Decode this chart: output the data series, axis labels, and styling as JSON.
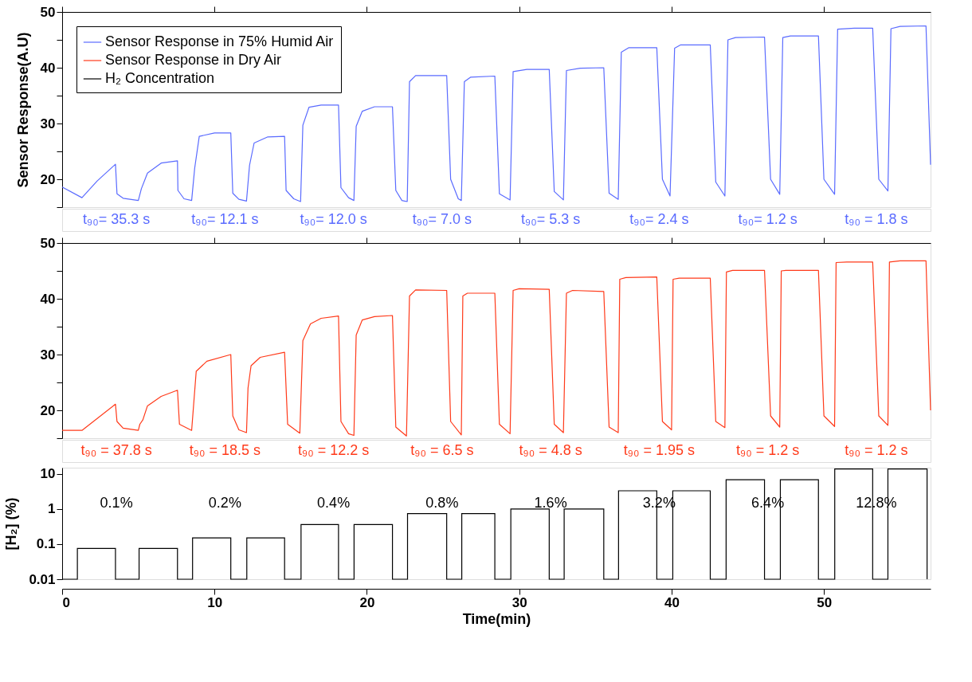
{
  "chart_data": [
    {
      "type": "line",
      "ylabel": "Sensor Response(A.U)",
      "xlim": [
        0,
        57
      ],
      "xticks": [
        0,
        10,
        20,
        30,
        40,
        50
      ],
      "ylim": [
        15,
        50
      ],
      "yticks": [
        {
          "value": 15,
          "label": null
        },
        20,
        {
          "value": 25,
          "label": null
        },
        30,
        {
          "value": 35,
          "label": null
        },
        40,
        {
          "value": 45,
          "label": null
        },
        50
      ],
      "tick_labels": "y",
      "grid": false,
      "legend": "top left",
      "series": [
        {
          "name": "Sensor Response in 75% Humid Air",
          "color": "#5a6bff",
          "x": [
            0,
            1.3,
            2.3,
            3.5,
            3.6,
            4.0,
            5.0,
            5.2,
            5.6,
            6.5,
            7.57,
            7.6,
            8.0,
            8.5,
            8.7,
            9.0,
            10.0,
            11.07,
            11.2,
            11.6,
            12.1,
            12.3,
            12.6,
            13.5,
            14.6,
            14.7,
            15.2,
            15.65,
            15.8,
            16.2,
            17.0,
            18.14,
            18.3,
            18.8,
            19.15,
            19.3,
            19.7,
            20.5,
            21.68,
            21.9,
            22.3,
            22.65,
            22.8,
            23.2,
            25.24,
            25.5,
            26.0,
            26.2,
            26.4,
            26.8,
            28.4,
            28.7,
            29.4,
            29.6,
            30.5,
            31.97,
            32.3,
            32.9,
            33.1,
            34.0,
            35.55,
            35.9,
            36.5,
            36.7,
            37.2,
            39.03,
            39.4,
            39.9,
            40.2,
            40.6,
            42.54,
            42.9,
            43.5,
            43.7,
            44.2,
            46.1,
            46.5,
            47.1,
            47.3,
            47.8,
            49.64,
            50.0,
            50.7,
            50.9,
            52.0,
            53.2,
            53.6,
            54.2,
            54.4,
            55.0,
            56.7,
            57.0
          ],
          "values": [
            18.6,
            16.7,
            19.7,
            22.7,
            17.4,
            16.6,
            16.2,
            18.3,
            21.1,
            22.9,
            23.3,
            18.0,
            16.5,
            16.2,
            22.0,
            27.7,
            28.3,
            28.3,
            17.5,
            16.4,
            16.1,
            22.5,
            26.5,
            27.6,
            27.7,
            18.0,
            16.5,
            16.0,
            29.7,
            32.9,
            33.3,
            33.3,
            18.5,
            16.7,
            16.2,
            29.5,
            32.2,
            33.0,
            33.0,
            18.0,
            16.2,
            16.0,
            37.5,
            38.6,
            38.6,
            20.0,
            16.5,
            16.2,
            37.5,
            38.3,
            38.5,
            17.4,
            16.3,
            39.3,
            39.7,
            39.7,
            17.8,
            16.3,
            39.5,
            39.9,
            40.0,
            17.5,
            16.4,
            42.8,
            43.6,
            43.6,
            20.0,
            17.0,
            43.5,
            44.1,
            44.1,
            19.5,
            17.0,
            45.0,
            45.4,
            45.5,
            20.0,
            17.3,
            45.4,
            45.7,
            45.7,
            20.0,
            17.3,
            46.9,
            47.1,
            47.1,
            20.0,
            17.9,
            47.0,
            47.4,
            47.5,
            22.6
          ]
        }
      ],
      "annotations": [
        "t₉₀= 35.3 s",
        "t₉₀= 12.1 s",
        "t₉₀= 12.0 s",
        "t₉₀= 7.0 s",
        "t₉₀= 5.3 s",
        "t₉₀= 2.4 s",
        "t₉₀= 1.2 s",
        "t₉₀ = 1.8 s"
      ]
    },
    {
      "type": "line",
      "xlim": [
        0,
        57
      ],
      "xticks": [
        0,
        10,
        20,
        30,
        40,
        50
      ],
      "ylim": [
        15,
        50
      ],
      "yticks": [
        {
          "value": 15,
          "label": null
        },
        20,
        {
          "value": 25,
          "label": null
        },
        30,
        {
          "value": 35,
          "label": null
        },
        40,
        {
          "value": 45,
          "label": null
        },
        50
      ],
      "tick_labels": "y",
      "grid": false,
      "series": [
        {
          "name": "Sensor Response in Dry Air",
          "color": "#ff3a1a",
          "x": [
            0,
            1.3,
            3.5,
            3.6,
            4.0,
            5.0,
            5.1,
            5.3,
            5.6,
            6.5,
            7.57,
            7.7,
            8.5,
            8.8,
            9.5,
            11.07,
            11.2,
            11.6,
            12.1,
            12.2,
            12.4,
            13.0,
            14.6,
            14.8,
            15.6,
            15.8,
            16.3,
            17.0,
            18.14,
            18.3,
            18.8,
            19.15,
            19.3,
            19.7,
            20.5,
            21.68,
            21.9,
            22.6,
            22.8,
            23.2,
            25.24,
            25.5,
            26.2,
            26.3,
            26.6,
            28.4,
            28.7,
            29.4,
            29.6,
            30.0,
            31.97,
            32.3,
            32.9,
            33.1,
            33.5,
            35.55,
            35.9,
            36.5,
            36.6,
            37.0,
            39.03,
            39.4,
            40.0,
            40.1,
            40.5,
            42.54,
            42.9,
            43.5,
            43.6,
            44.0,
            46.1,
            46.5,
            47.1,
            47.2,
            47.5,
            49.64,
            50.0,
            50.7,
            50.8,
            51.5,
            53.2,
            53.6,
            54.2,
            54.3,
            55.0,
            56.7,
            57.0
          ],
          "values": [
            16.4,
            16.4,
            21.1,
            18.0,
            16.8,
            16.4,
            17.5,
            18.3,
            20.8,
            22.5,
            23.6,
            17.5,
            16.4,
            27.0,
            28.8,
            30.0,
            19.0,
            16.5,
            16.0,
            24.0,
            28.0,
            29.5,
            30.4,
            17.5,
            15.9,
            32.5,
            35.5,
            36.5,
            36.9,
            18.0,
            15.8,
            15.5,
            33.5,
            36.2,
            36.8,
            37.0,
            17.0,
            15.4,
            40.5,
            41.6,
            41.5,
            18.0,
            15.6,
            40.5,
            41.0,
            41.0,
            17.5,
            15.8,
            41.5,
            41.8,
            41.7,
            17.5,
            16.0,
            41.0,
            41.5,
            41.3,
            17.0,
            16.0,
            43.5,
            43.8,
            43.9,
            18.0,
            16.5,
            43.5,
            43.7,
            43.7,
            18.0,
            16.9,
            44.8,
            45.1,
            45.1,
            19.0,
            17.0,
            45.0,
            45.1,
            45.1,
            19.0,
            17.1,
            46.5,
            46.6,
            46.6,
            19.0,
            17.3,
            46.6,
            46.8,
            46.8,
            20.0
          ]
        }
      ],
      "annotations": [
        "t₉₀ = 37.8 s",
        "t₉₀ = 18.5 s",
        "t₉₀ = 12.2 s",
        "t₉₀ = 6.5 s",
        "t₉₀ = 4.8 s",
        "t₉₀ = 1.95 s",
        "t₉₀ = 1.2 s",
        "t₉₀ = 1.2 s"
      ]
    },
    {
      "type": "step",
      "xlabel": "Time(min)",
      "ylabel": "[H₂] (%)",
      "xlim": [
        0,
        57
      ],
      "xticks": [
        0,
        10,
        20,
        30,
        40,
        50
      ],
      "ylim": [
        0.01,
        15
      ],
      "yticks": [
        0.01,
        0.1,
        1,
        10
      ],
      "log": "y",
      "grid": false,
      "series": [
        {
          "name": "H₂ Concentration",
          "color": "#000000",
          "x": [
            0,
            1.0,
            3.5,
            5.05,
            7.57,
            8.56,
            11.07,
            12.12,
            14.6,
            15.68,
            18.14,
            19.16,
            21.68,
            22.67,
            25.24,
            26.23,
            28.4,
            29.45,
            31.97,
            32.95,
            35.55,
            36.52,
            39.03,
            40.08,
            42.54,
            43.58,
            46.1,
            47.14,
            49.64,
            50.71,
            53.2,
            54.2,
            56.77
          ],
          "values": [
            0.01,
            0.075,
            0.01,
            0.075,
            0.01,
            0.15,
            0.01,
            0.15,
            0.01,
            0.36,
            0.01,
            0.36,
            0.01,
            0.74,
            0.01,
            0.74,
            0.01,
            1.0,
            0.01,
            1.0,
            0.01,
            3.3,
            0.01,
            3.3,
            0.01,
            6.8,
            0.01,
            6.8,
            0.01,
            13.8,
            0.01,
            13.8,
            0.01
          ]
        }
      ],
      "annotations": [
        "0.1%",
        "0.2%",
        "0.4%",
        "0.8%",
        "1.6%",
        "3.2%",
        "6.4%",
        "12.8%"
      ]
    }
  ]
}
